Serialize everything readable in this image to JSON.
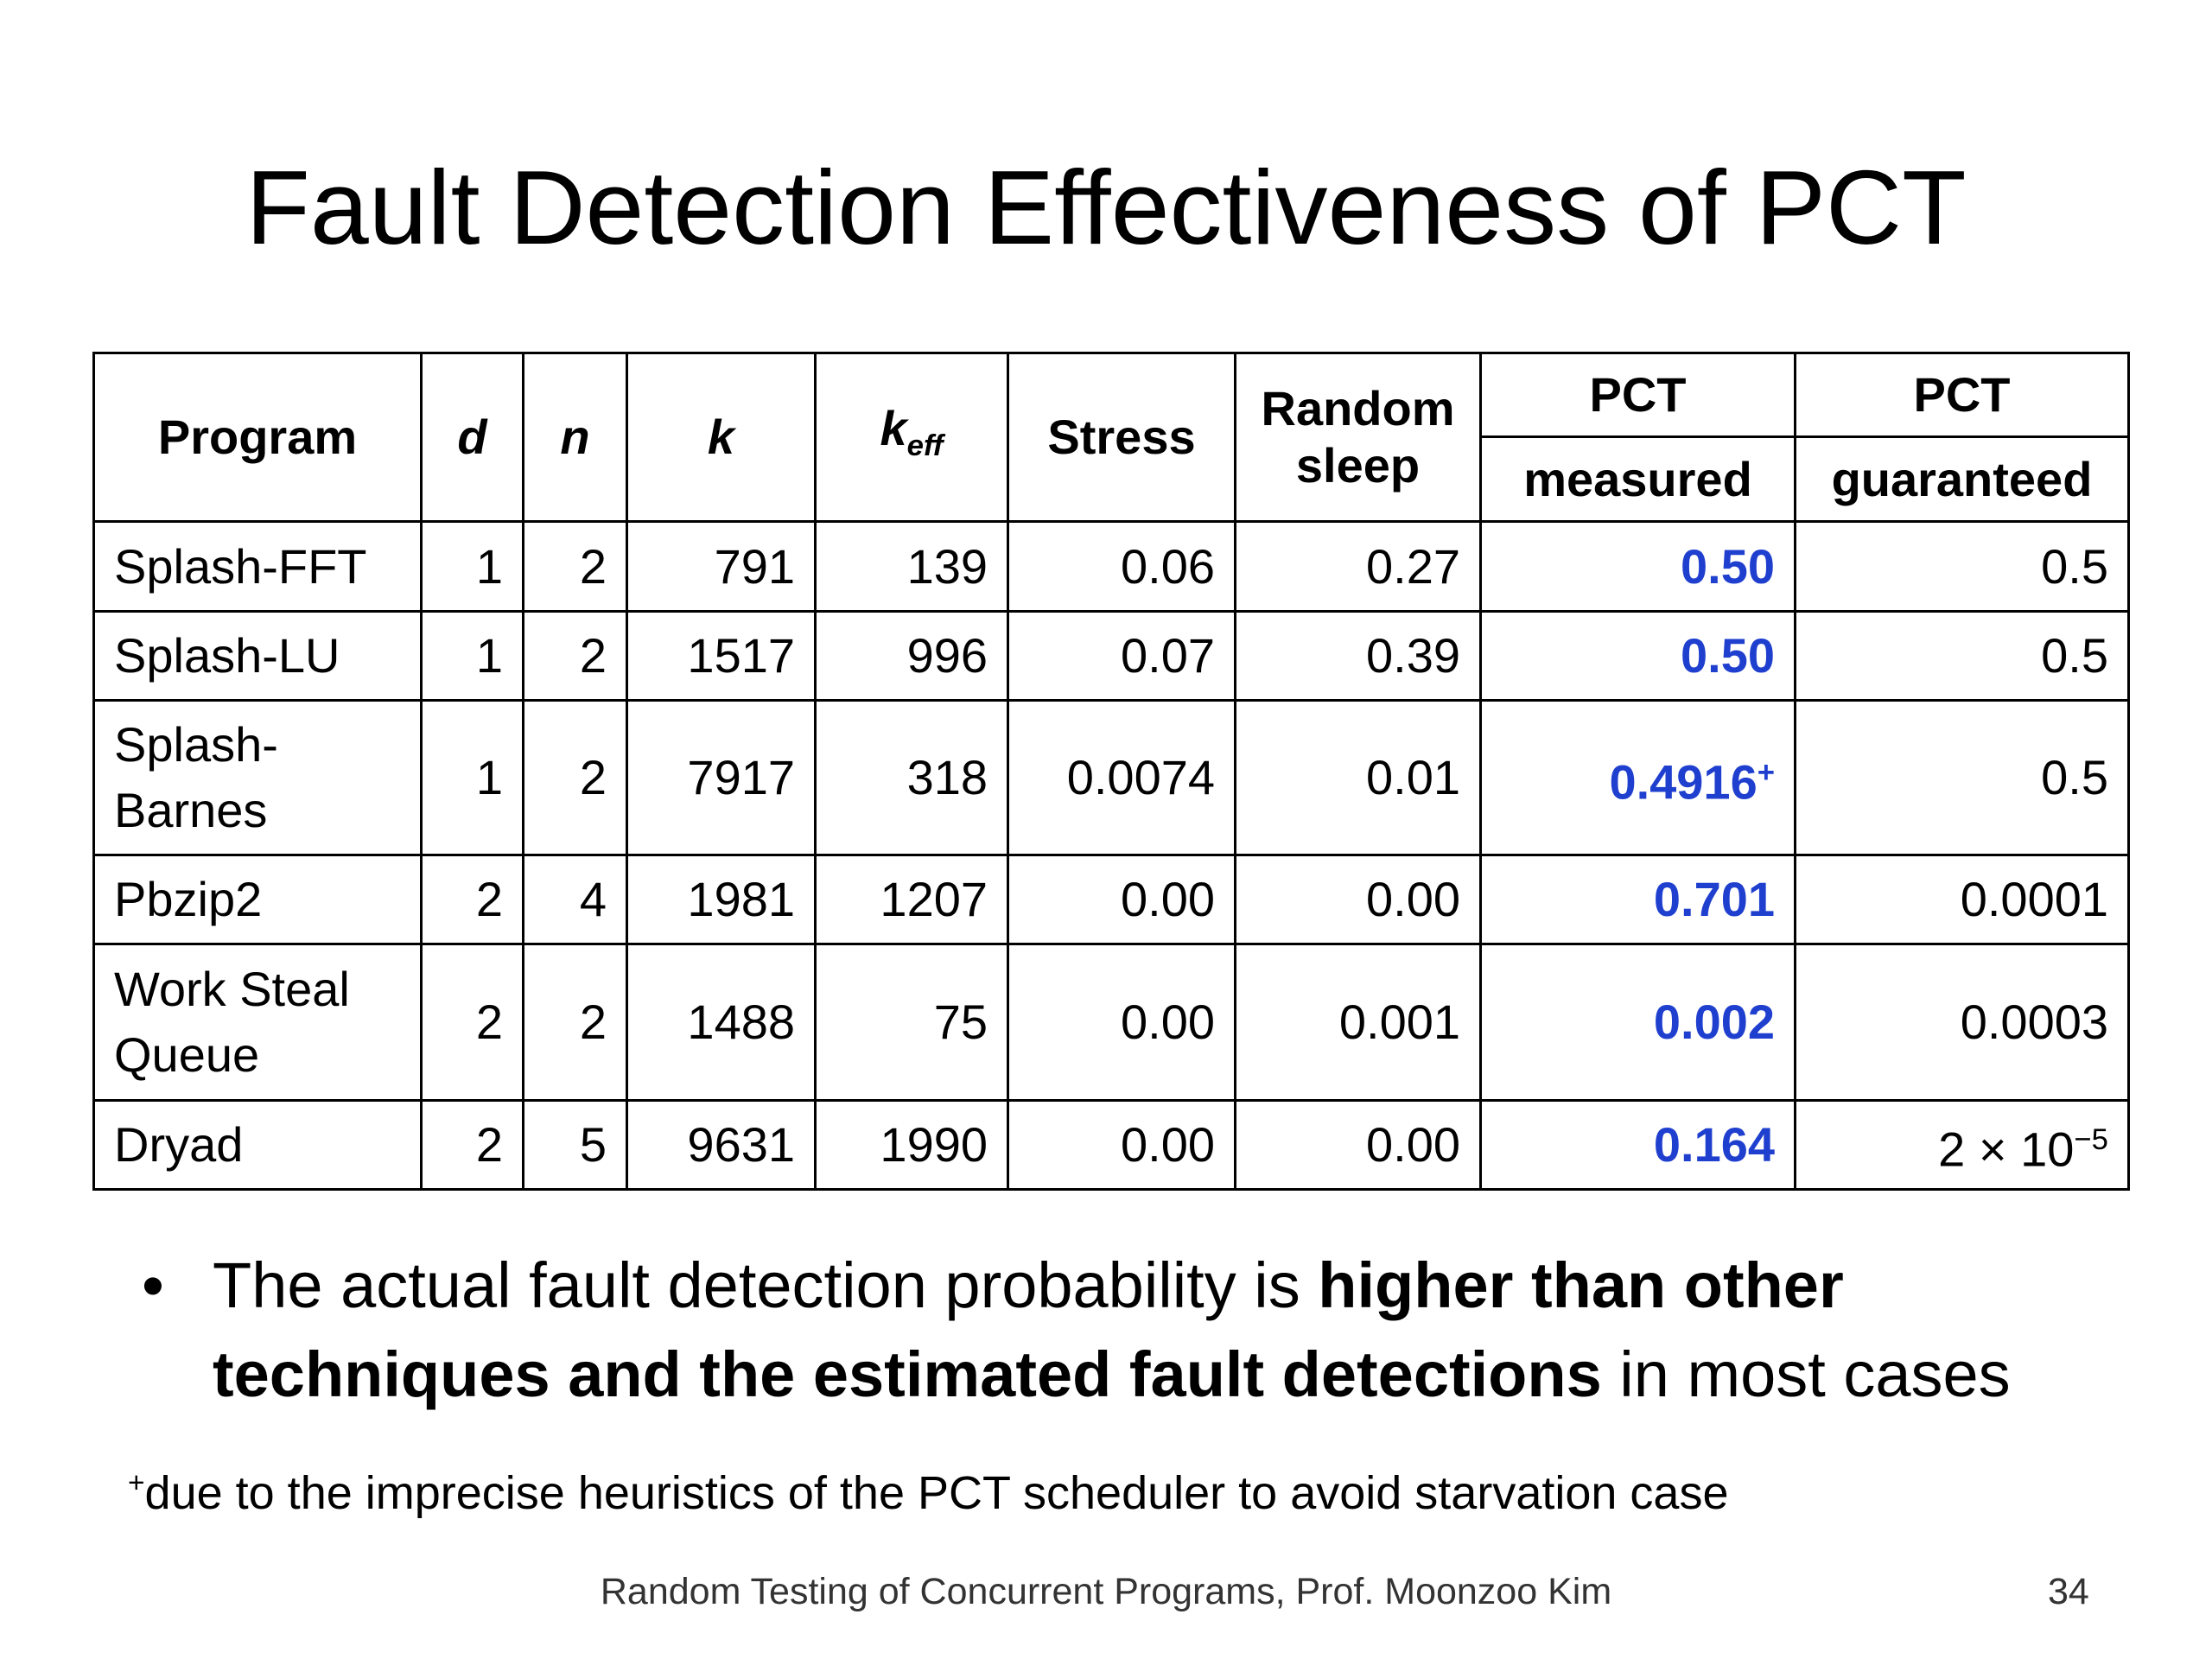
{
  "title": "Fault Detection Effectiveness of PCT",
  "table": {
    "header": {
      "program": "Program",
      "d": "d",
      "n": "n",
      "k": "k",
      "keff": "k",
      "keff_sub": "eff",
      "stress": "Stress",
      "random_sleep": "Random sleep",
      "pct": "PCT",
      "measured": "measured",
      "guaranteed": "guaranteed"
    },
    "rows": [
      {
        "program": "Splash-FFT",
        "d": "1",
        "n": "2",
        "k": "791",
        "keff": "139",
        "stress": "0.06",
        "random_sleep": "0.27",
        "pct_measured": "0.50",
        "pct_guaranteed": "0.5"
      },
      {
        "program": "Splash-LU",
        "d": "1",
        "n": "2",
        "k": "1517",
        "keff": "996",
        "stress": "0.07",
        "random_sleep": "0.39",
        "pct_measured": "0.50",
        "pct_guaranteed": "0.5"
      },
      {
        "program": "Splash-Barnes",
        "d": "1",
        "n": "2",
        "k": "7917",
        "keff": "318",
        "stress": "0.0074",
        "random_sleep": "0.01",
        "pct_measured": "0.4916",
        "pct_measured_mark": "+",
        "pct_guaranteed": "0.5"
      },
      {
        "program": "Pbzip2",
        "d": "2",
        "n": "4",
        "k": "1981",
        "keff": "1207",
        "stress": "0.00",
        "random_sleep": "0.00",
        "pct_measured": "0.701",
        "pct_guaranteed": "0.0001"
      },
      {
        "program": "Work Steal Queue",
        "d": "2",
        "n": "2",
        "k": "1488",
        "keff": "75",
        "stress": "0.00",
        "random_sleep": "0.001",
        "pct_measured": "0.002",
        "pct_guaranteed": "0.0003"
      },
      {
        "program": "Dryad",
        "d": "2",
        "n": "5",
        "k": "9631",
        "keff": "1990",
        "stress": "0.00",
        "random_sleep": "0.00",
        "pct_measured": "0.164",
        "pct_guaranteed": "2 × 10",
        "pct_guaranteed_exp": "−5"
      }
    ]
  },
  "bullet": {
    "plain1": "The actual fault detection probability is ",
    "bold": "higher than other techniques and the estimated fault detections",
    "plain2": " in most cases"
  },
  "footnote": {
    "mark": "+",
    "text": "due to the imprecise heuristics of the PCT scheduler to avoid starvation case"
  },
  "footer": {
    "text": "Random Testing of Concurrent Programs, Prof. Moonzoo Kim",
    "page": "34"
  }
}
